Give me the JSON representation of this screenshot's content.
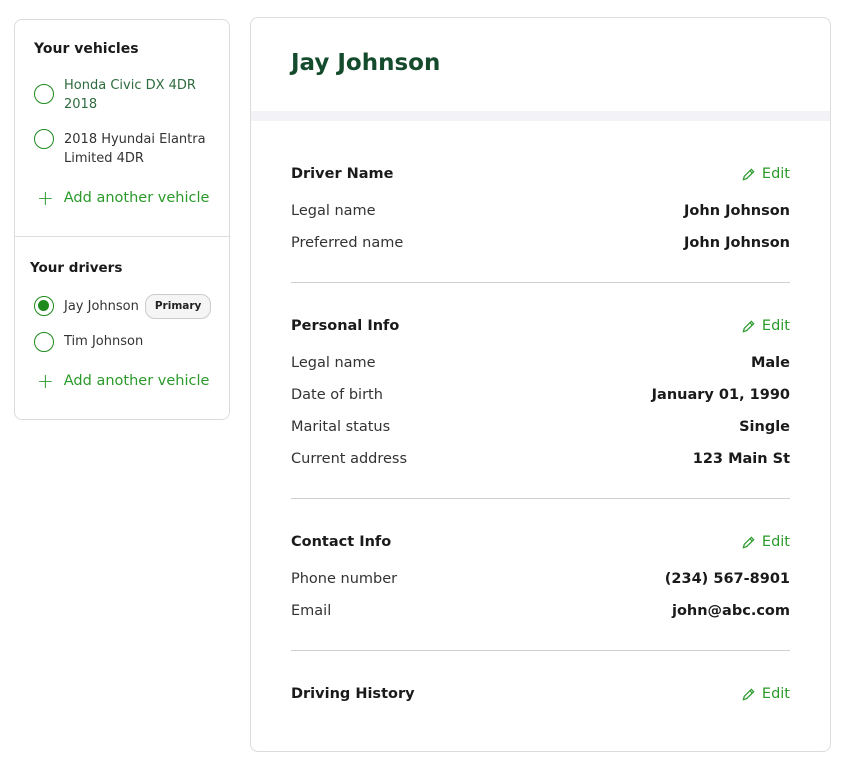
{
  "sidebar": {
    "vehicles_title": "Your vehicles",
    "vehicles": [
      {
        "line1": "Honda Civic DX 4DR",
        "line2": "2018",
        "selected": false
      },
      {
        "line1": "2018 Hyundai Elantra",
        "line2": "Limited 4DR",
        "selected": false
      }
    ],
    "add_vehicle_label": "Add another vehicle",
    "drivers_title": "Your drivers",
    "drivers": [
      {
        "name": "Jay Johnson",
        "badge": "Primary",
        "selected": true
      },
      {
        "name": "Tim Johnson",
        "selected": false
      }
    ],
    "add_driver_label": "Add another vehicle"
  },
  "main": {
    "title": "Jay Johnson",
    "edit_label": "Edit",
    "sections": [
      {
        "heading": "Driver Name",
        "rows": [
          {
            "label": "Legal name",
            "value": "John Johnson"
          },
          {
            "label": "Preferred name",
            "value": "John Johnson"
          }
        ]
      },
      {
        "heading": "Personal Info",
        "rows": [
          {
            "label": "Legal name",
            "value": "Male"
          },
          {
            "label": "Date of birth",
            "value": "January 01, 1990"
          },
          {
            "label": "Marital status",
            "value": "Single"
          },
          {
            "label": "Current address",
            "value": "123 Main St"
          }
        ]
      },
      {
        "heading": "Contact Info",
        "rows": [
          {
            "label": "Phone number",
            "value": "(234) 567-8901"
          },
          {
            "label": "Email",
            "value": "john@abc.com"
          }
        ]
      },
      {
        "heading": "Driving History",
        "rows": []
      }
    ]
  },
  "colors": {
    "accent": "#2a9a2a",
    "title": "#154b2d"
  }
}
